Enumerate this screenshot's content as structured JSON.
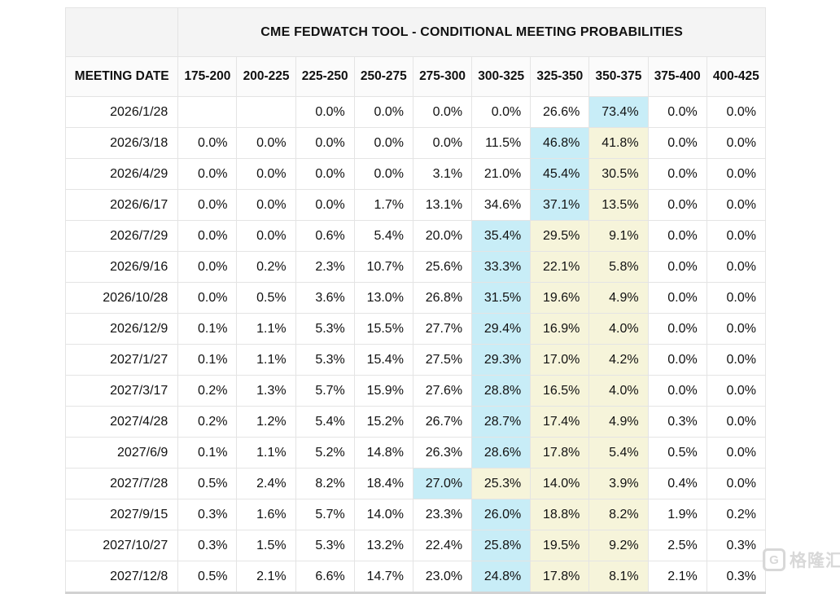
{
  "chart_data": {
    "type": "table",
    "title": "CME FEDWATCH TOOL - CONDITIONAL MEETING PROBABILITIES",
    "columns": [
      "MEETING DATE",
      "175-200",
      "200-225",
      "225-250",
      "250-275",
      "275-300",
      "300-325",
      "325-350",
      "350-375",
      "375-400",
      "400-425"
    ],
    "rows": [
      {
        "date": "2026/1/28",
        "values": [
          "",
          "",
          "0.0%",
          "0.0%",
          "0.0%",
          "0.0%",
          "26.6%",
          "73.4%",
          "0.0%",
          "0.0%"
        ],
        "highlights": [
          "",
          "",
          "",
          "",
          "",
          "",
          "",
          "cyan",
          "",
          ""
        ]
      },
      {
        "date": "2026/3/18",
        "values": [
          "0.0%",
          "0.0%",
          "0.0%",
          "0.0%",
          "0.0%",
          "11.5%",
          "46.8%",
          "41.8%",
          "0.0%",
          "0.0%"
        ],
        "highlights": [
          "",
          "",
          "",
          "",
          "",
          "",
          "cyan",
          "yellow",
          "",
          ""
        ]
      },
      {
        "date": "2026/4/29",
        "values": [
          "0.0%",
          "0.0%",
          "0.0%",
          "0.0%",
          "3.1%",
          "21.0%",
          "45.4%",
          "30.5%",
          "0.0%",
          "0.0%"
        ],
        "highlights": [
          "",
          "",
          "",
          "",
          "",
          "",
          "cyan",
          "yellow",
          "",
          ""
        ]
      },
      {
        "date": "2026/6/17",
        "values": [
          "0.0%",
          "0.0%",
          "0.0%",
          "1.7%",
          "13.1%",
          "34.6%",
          "37.1%",
          "13.5%",
          "0.0%",
          "0.0%"
        ],
        "highlights": [
          "",
          "",
          "",
          "",
          "",
          "",
          "cyan",
          "yellow",
          "",
          ""
        ]
      },
      {
        "date": "2026/7/29",
        "values": [
          "0.0%",
          "0.0%",
          "0.6%",
          "5.4%",
          "20.0%",
          "35.4%",
          "29.5%",
          "9.1%",
          "0.0%",
          "0.0%"
        ],
        "highlights": [
          "",
          "",
          "",
          "",
          "",
          "cyan",
          "yellow",
          "yellow",
          "",
          ""
        ]
      },
      {
        "date": "2026/9/16",
        "values": [
          "0.0%",
          "0.2%",
          "2.3%",
          "10.7%",
          "25.6%",
          "33.3%",
          "22.1%",
          "5.8%",
          "0.0%",
          "0.0%"
        ],
        "highlights": [
          "",
          "",
          "",
          "",
          "",
          "cyan",
          "yellow",
          "yellow",
          "",
          ""
        ]
      },
      {
        "date": "2026/10/28",
        "values": [
          "0.0%",
          "0.5%",
          "3.6%",
          "13.0%",
          "26.8%",
          "31.5%",
          "19.6%",
          "4.9%",
          "0.0%",
          "0.0%"
        ],
        "highlights": [
          "",
          "",
          "",
          "",
          "",
          "cyan",
          "yellow",
          "yellow",
          "",
          ""
        ]
      },
      {
        "date": "2026/12/9",
        "values": [
          "0.1%",
          "1.1%",
          "5.3%",
          "15.5%",
          "27.7%",
          "29.4%",
          "16.9%",
          "4.0%",
          "0.0%",
          "0.0%"
        ],
        "highlights": [
          "",
          "",
          "",
          "",
          "",
          "cyan",
          "yellow",
          "yellow",
          "",
          ""
        ]
      },
      {
        "date": "2027/1/27",
        "values": [
          "0.1%",
          "1.1%",
          "5.3%",
          "15.4%",
          "27.5%",
          "29.3%",
          "17.0%",
          "4.2%",
          "0.0%",
          "0.0%"
        ],
        "highlights": [
          "",
          "",
          "",
          "",
          "",
          "cyan",
          "yellow",
          "yellow",
          "",
          ""
        ]
      },
      {
        "date": "2027/3/17",
        "values": [
          "0.2%",
          "1.3%",
          "5.7%",
          "15.9%",
          "27.6%",
          "28.8%",
          "16.5%",
          "4.0%",
          "0.0%",
          "0.0%"
        ],
        "highlights": [
          "",
          "",
          "",
          "",
          "",
          "cyan",
          "yellow",
          "yellow",
          "",
          ""
        ]
      },
      {
        "date": "2027/4/28",
        "values": [
          "0.2%",
          "1.2%",
          "5.4%",
          "15.2%",
          "26.7%",
          "28.7%",
          "17.4%",
          "4.9%",
          "0.3%",
          "0.0%"
        ],
        "highlights": [
          "",
          "",
          "",
          "",
          "",
          "cyan",
          "yellow",
          "yellow",
          "",
          ""
        ]
      },
      {
        "date": "2027/6/9",
        "values": [
          "0.1%",
          "1.1%",
          "5.2%",
          "14.8%",
          "26.3%",
          "28.6%",
          "17.8%",
          "5.4%",
          "0.5%",
          "0.0%"
        ],
        "highlights": [
          "",
          "",
          "",
          "",
          "",
          "cyan",
          "yellow",
          "yellow",
          "",
          ""
        ]
      },
      {
        "date": "2027/7/28",
        "values": [
          "0.5%",
          "2.4%",
          "8.2%",
          "18.4%",
          "27.0%",
          "25.3%",
          "14.0%",
          "3.9%",
          "0.4%",
          "0.0%"
        ],
        "highlights": [
          "",
          "",
          "",
          "",
          "cyan",
          "yellow",
          "yellow",
          "yellow",
          "",
          ""
        ]
      },
      {
        "date": "2027/9/15",
        "values": [
          "0.3%",
          "1.6%",
          "5.7%",
          "14.0%",
          "23.3%",
          "26.0%",
          "18.8%",
          "8.2%",
          "1.9%",
          "0.2%"
        ],
        "highlights": [
          "",
          "",
          "",
          "",
          "",
          "cyan",
          "yellow",
          "yellow",
          "",
          ""
        ]
      },
      {
        "date": "2027/10/27",
        "values": [
          "0.3%",
          "1.5%",
          "5.3%",
          "13.2%",
          "22.4%",
          "25.8%",
          "19.5%",
          "9.2%",
          "2.5%",
          "0.3%"
        ],
        "highlights": [
          "",
          "",
          "",
          "",
          "",
          "cyan",
          "yellow",
          "yellow",
          "",
          ""
        ]
      },
      {
        "date": "2027/12/8",
        "values": [
          "0.5%",
          "2.1%",
          "6.6%",
          "14.7%",
          "23.0%",
          "24.8%",
          "17.8%",
          "8.1%",
          "2.1%",
          "0.3%"
        ],
        "highlights": [
          "",
          "",
          "",
          "",
          "",
          "cyan",
          "yellow",
          "yellow",
          "",
          ""
        ]
      }
    ]
  },
  "colors": {
    "highlight_cyan": "#c8edf7",
    "highlight_yellow": "#f6f4da",
    "title_band_bg": "#f4f4f4",
    "header_row_bg": "#fbfbfb",
    "grid_border": "#e4e4e4"
  },
  "watermark": {
    "logo_glyph": "G",
    "text": "格隆汇"
  }
}
